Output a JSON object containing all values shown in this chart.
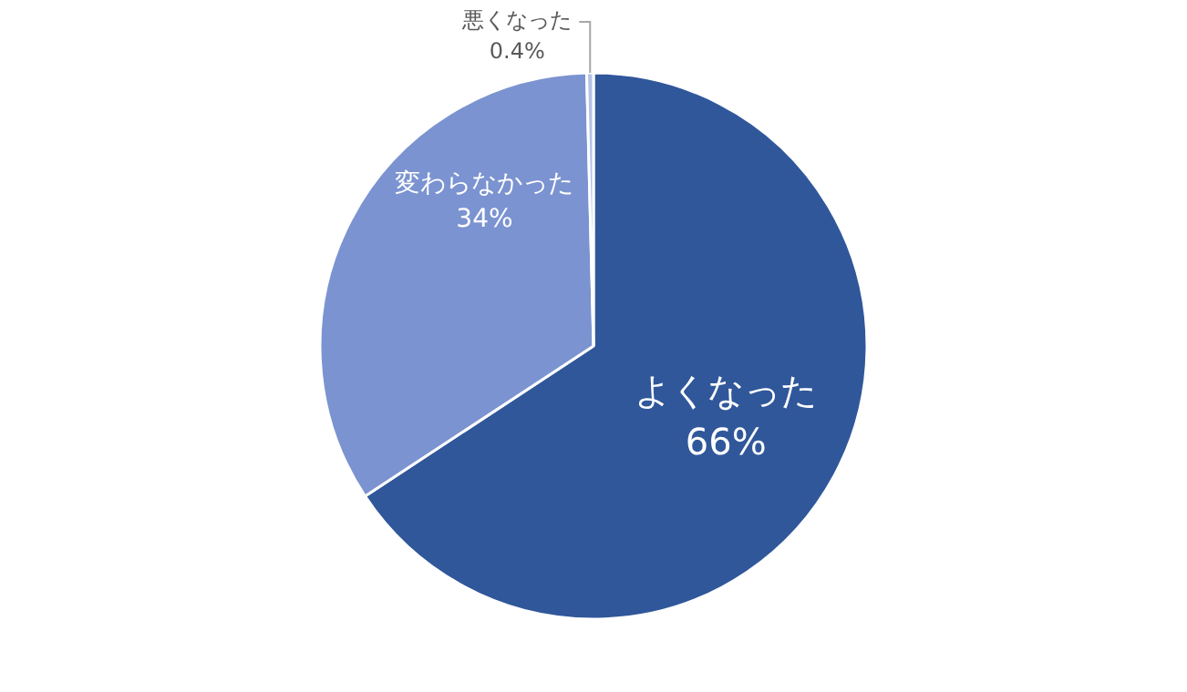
{
  "chart_data": {
    "type": "pie",
    "categories": [
      "よくなった",
      "変わらなかった",
      "悪くなった"
    ],
    "values": [
      66,
      34,
      0.4
    ],
    "colors": [
      "#30579a",
      "#7b93d0",
      "#b4c2e6"
    ],
    "value_labels": [
      "66%",
      "34%",
      "0.4%"
    ],
    "legend": false
  }
}
